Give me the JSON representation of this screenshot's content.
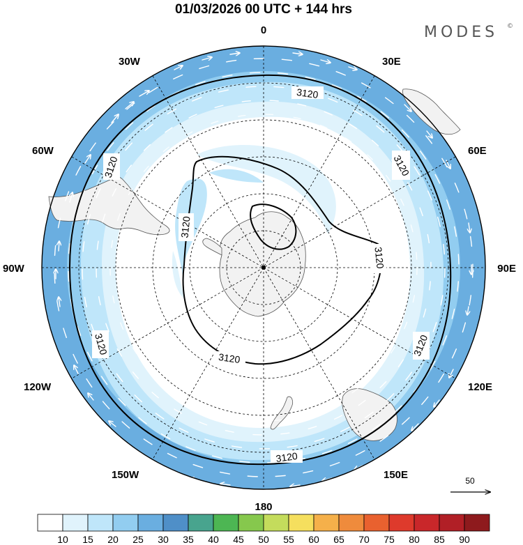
{
  "title": "01/03/2026  00 UTC  + 144 hrs",
  "brand": "MODES",
  "brand_mark": "©",
  "longitude_labels": {
    "n": "0",
    "s": "180",
    "e90": "90E",
    "w90": "90W",
    "e30": "30E",
    "w30": "30W",
    "e60": "60E",
    "w60": "60W",
    "e120": "120E",
    "w120": "120W",
    "e150": "150E",
    "w150": "150W"
  },
  "contour_label": "3120",
  "vector_ref": {
    "label": "50"
  },
  "colorbar": {
    "labels": [
      "10",
      "15",
      "20",
      "25",
      "30",
      "35",
      "40",
      "45",
      "50",
      "55",
      "60",
      "65",
      "70",
      "75",
      "80",
      "85",
      "90"
    ],
    "colors": [
      "#ffffff",
      "#e0f3fc",
      "#bfe6fa",
      "#92cdf0",
      "#6aaee0",
      "#4f8fc8",
      "#48a48e",
      "#4db653",
      "#86c84d",
      "#c4dc5c",
      "#f5df5e",
      "#f5b04a",
      "#ef8b3c",
      "#e9612f",
      "#de3a2c",
      "#c9272a",
      "#b11f26",
      "#8e1a1d"
    ]
  },
  "colors": {
    "band_outer": "#6aaee0",
    "band_mid": "#92cdf0",
    "band_inner": "#bfe6fa",
    "land": "#f2f2f2"
  }
}
